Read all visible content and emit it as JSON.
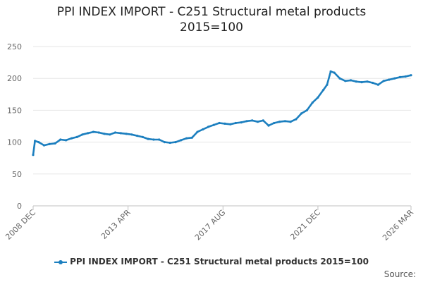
{
  "chart_data": {
    "type": "line",
    "title": "PPI INDEX IMPORT - C251 Structural metal products 2015=100",
    "title_lines": [
      "PPI INDEX IMPORT - C251 Structural metal products",
      "2015=100"
    ],
    "x_tick_labels": [
      "2008 DEC",
      "2013 APR",
      "2017 AUG",
      "2021 DEC",
      "2026 MAR"
    ],
    "x_tick_positions": [
      "2008-12",
      "2013-04",
      "2017-08",
      "2021-12",
      "2026-03"
    ],
    "x_range": [
      "2008-12",
      "2026-03"
    ],
    "ylim": [
      0,
      250
    ],
    "y_ticks": [
      0,
      50,
      100,
      150,
      200,
      250
    ],
    "grid": true,
    "legend_position": "bottom-center",
    "series": [
      {
        "name": "PPI INDEX IMPORT - C251 Structural metal products 2015=100",
        "color": "#1c7fbf",
        "x": [
          "2008-12",
          "2009-01",
          "2009-03",
          "2009-06",
          "2009-09",
          "2009-12",
          "2010-03",
          "2010-06",
          "2010-09",
          "2010-12",
          "2011-03",
          "2011-06",
          "2011-09",
          "2011-12",
          "2012-03",
          "2012-06",
          "2012-09",
          "2012-12",
          "2013-03",
          "2013-06",
          "2013-09",
          "2013-12",
          "2014-03",
          "2014-06",
          "2014-09",
          "2014-12",
          "2015-03",
          "2015-06",
          "2015-09",
          "2015-12",
          "2016-03",
          "2016-06",
          "2016-09",
          "2016-12",
          "2017-03",
          "2017-06",
          "2017-09",
          "2017-12",
          "2018-03",
          "2018-06",
          "2018-09",
          "2018-12",
          "2019-03",
          "2019-06",
          "2019-09",
          "2019-12",
          "2020-03",
          "2020-06",
          "2020-09",
          "2020-12",
          "2021-03",
          "2021-06",
          "2021-09",
          "2021-12",
          "2022-03",
          "2022-05",
          "2022-07",
          "2022-09",
          "2022-12",
          "2023-03",
          "2023-06",
          "2023-09",
          "2023-12",
          "2024-03",
          "2024-06",
          "2024-09",
          "2024-12",
          "2025-03",
          "2025-06",
          "2025-09",
          "2025-12",
          "2026-03"
        ],
        "values": [
          80,
          102,
          100,
          95,
          97,
          98,
          104,
          103,
          106,
          108,
          112,
          114,
          116,
          115,
          113,
          112,
          115,
          114,
          113,
          112,
          110,
          108,
          105,
          104,
          104,
          100,
          99,
          100,
          103,
          106,
          107,
          116,
          120,
          124,
          127,
          130,
          129,
          128,
          130,
          131,
          133,
          134,
          132,
          134,
          126,
          130,
          132,
          133,
          132,
          136,
          145,
          150,
          162,
          170,
          182,
          190,
          211,
          209,
          200,
          196,
          197,
          195,
          194,
          195,
          193,
          190,
          196,
          198,
          200,
          202,
          203,
          205
        ]
      }
    ]
  },
  "legend": {
    "label": "PPI INDEX IMPORT - C251 Structural metal products 2015=100"
  },
  "credits": "Source:"
}
